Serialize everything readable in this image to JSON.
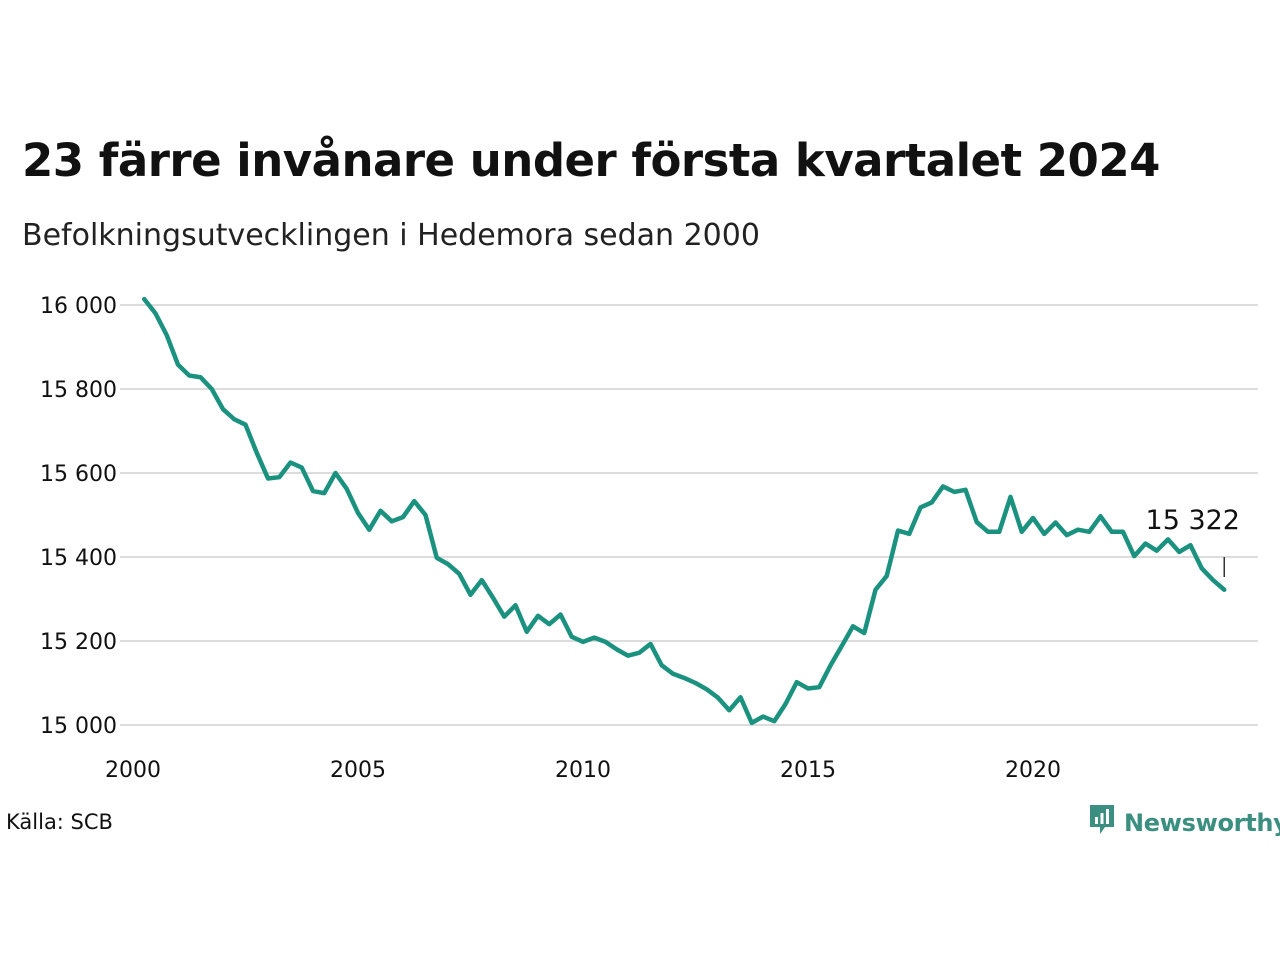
{
  "chart_data": {
    "type": "line",
    "title": "23 färre invånare under första kvartalet 2024",
    "subtitle": "Befolkningsutvecklingen i Hedemora sedan 2000",
    "yticks": [
      "16 000",
      "15 800",
      "15 600",
      "15 400",
      "15 200",
      "15 000"
    ],
    "ytick_values": [
      16000,
      15800,
      15600,
      15400,
      15200,
      15000
    ],
    "xticks": [
      "2000",
      "2005",
      "2010",
      "2015",
      "2020"
    ],
    "xtick_values": [
      2000,
      2005,
      2010,
      2015,
      2020
    ],
    "ylim": [
      15000,
      16000
    ],
    "xlim": [
      2000,
      2025
    ],
    "grid": true,
    "line_color": "#1b9280",
    "series": [
      {
        "x": [
          2000.25,
          2000.5,
          2000.75,
          2001.0,
          2001.25,
          2001.5,
          2001.75,
          2002.0,
          2002.25,
          2002.5,
          2002.75,
          2003.0,
          2003.25,
          2003.5,
          2003.75,
          2004.0,
          2004.25,
          2004.5,
          2004.75,
          2005.0,
          2005.25,
          2005.5,
          2005.75,
          2006.0,
          2006.25,
          2006.5,
          2006.75,
          2007.0,
          2007.25,
          2007.5,
          2007.75,
          2008.0,
          2008.25,
          2008.5,
          2008.75,
          2009.0,
          2009.25,
          2009.5,
          2009.75,
          2010.0,
          2010.25,
          2010.5,
          2010.75,
          2011.0,
          2011.25,
          2011.5,
          2011.75,
          2012.0,
          2012.25,
          2012.5,
          2012.75,
          2013.0,
          2013.25,
          2013.5,
          2013.75,
          2014.0,
          2014.25,
          2014.5,
          2014.75,
          2015.0,
          2015.25,
          2015.5,
          2015.75,
          2016.0,
          2016.25,
          2016.5,
          2016.75,
          2017.0,
          2017.25,
          2017.5,
          2017.75,
          2018.0,
          2018.25,
          2018.5,
          2018.75,
          2019.0,
          2019.25,
          2019.5,
          2019.75,
          2020.0,
          2020.25,
          2020.5,
          2020.75,
          2021.0,
          2021.25,
          2021.5,
          2021.75,
          2022.0,
          2022.25,
          2022.5,
          2022.75,
          2023.0,
          2023.25,
          2023.5,
          2023.75,
          2024.0,
          2024.25
        ],
        "values": [
          16014,
          15980,
          15928,
          15858,
          15832,
          15828,
          15800,
          15752,
          15728,
          15715,
          15648,
          15587,
          15590,
          15625,
          15613,
          15557,
          15552,
          15600,
          15562,
          15505,
          15465,
          15510,
          15485,
          15495,
          15533,
          15500,
          15398,
          15383,
          15360,
          15310,
          15345,
          15303,
          15258,
          15285,
          15222,
          15260,
          15240,
          15263,
          15210,
          15198,
          15208,
          15198,
          15180,
          15165,
          15172,
          15193,
          15142,
          15122,
          15112,
          15100,
          15085,
          15065,
          15035,
          15066,
          15005,
          15020,
          15009,
          15050,
          15102,
          15087,
          15090,
          15142,
          15188,
          15235,
          15219,
          15322,
          15355,
          15463,
          15455,
          15518,
          15530,
          15568,
          15555,
          15560,
          15483,
          15460,
          15460,
          15543,
          15460,
          15493,
          15455,
          15482,
          15452,
          15465,
          15460,
          15497,
          15460,
          15460,
          15402,
          15432,
          15415,
          15442,
          15412,
          15428,
          15373,
          15345,
          15322
        ]
      }
    ],
    "end_label": "15 322"
  },
  "source": "Källa: SCB",
  "brand": {
    "name": "Newsworthy",
    "color": "#3a8f80",
    "icon": "bar-chart-icon"
  }
}
